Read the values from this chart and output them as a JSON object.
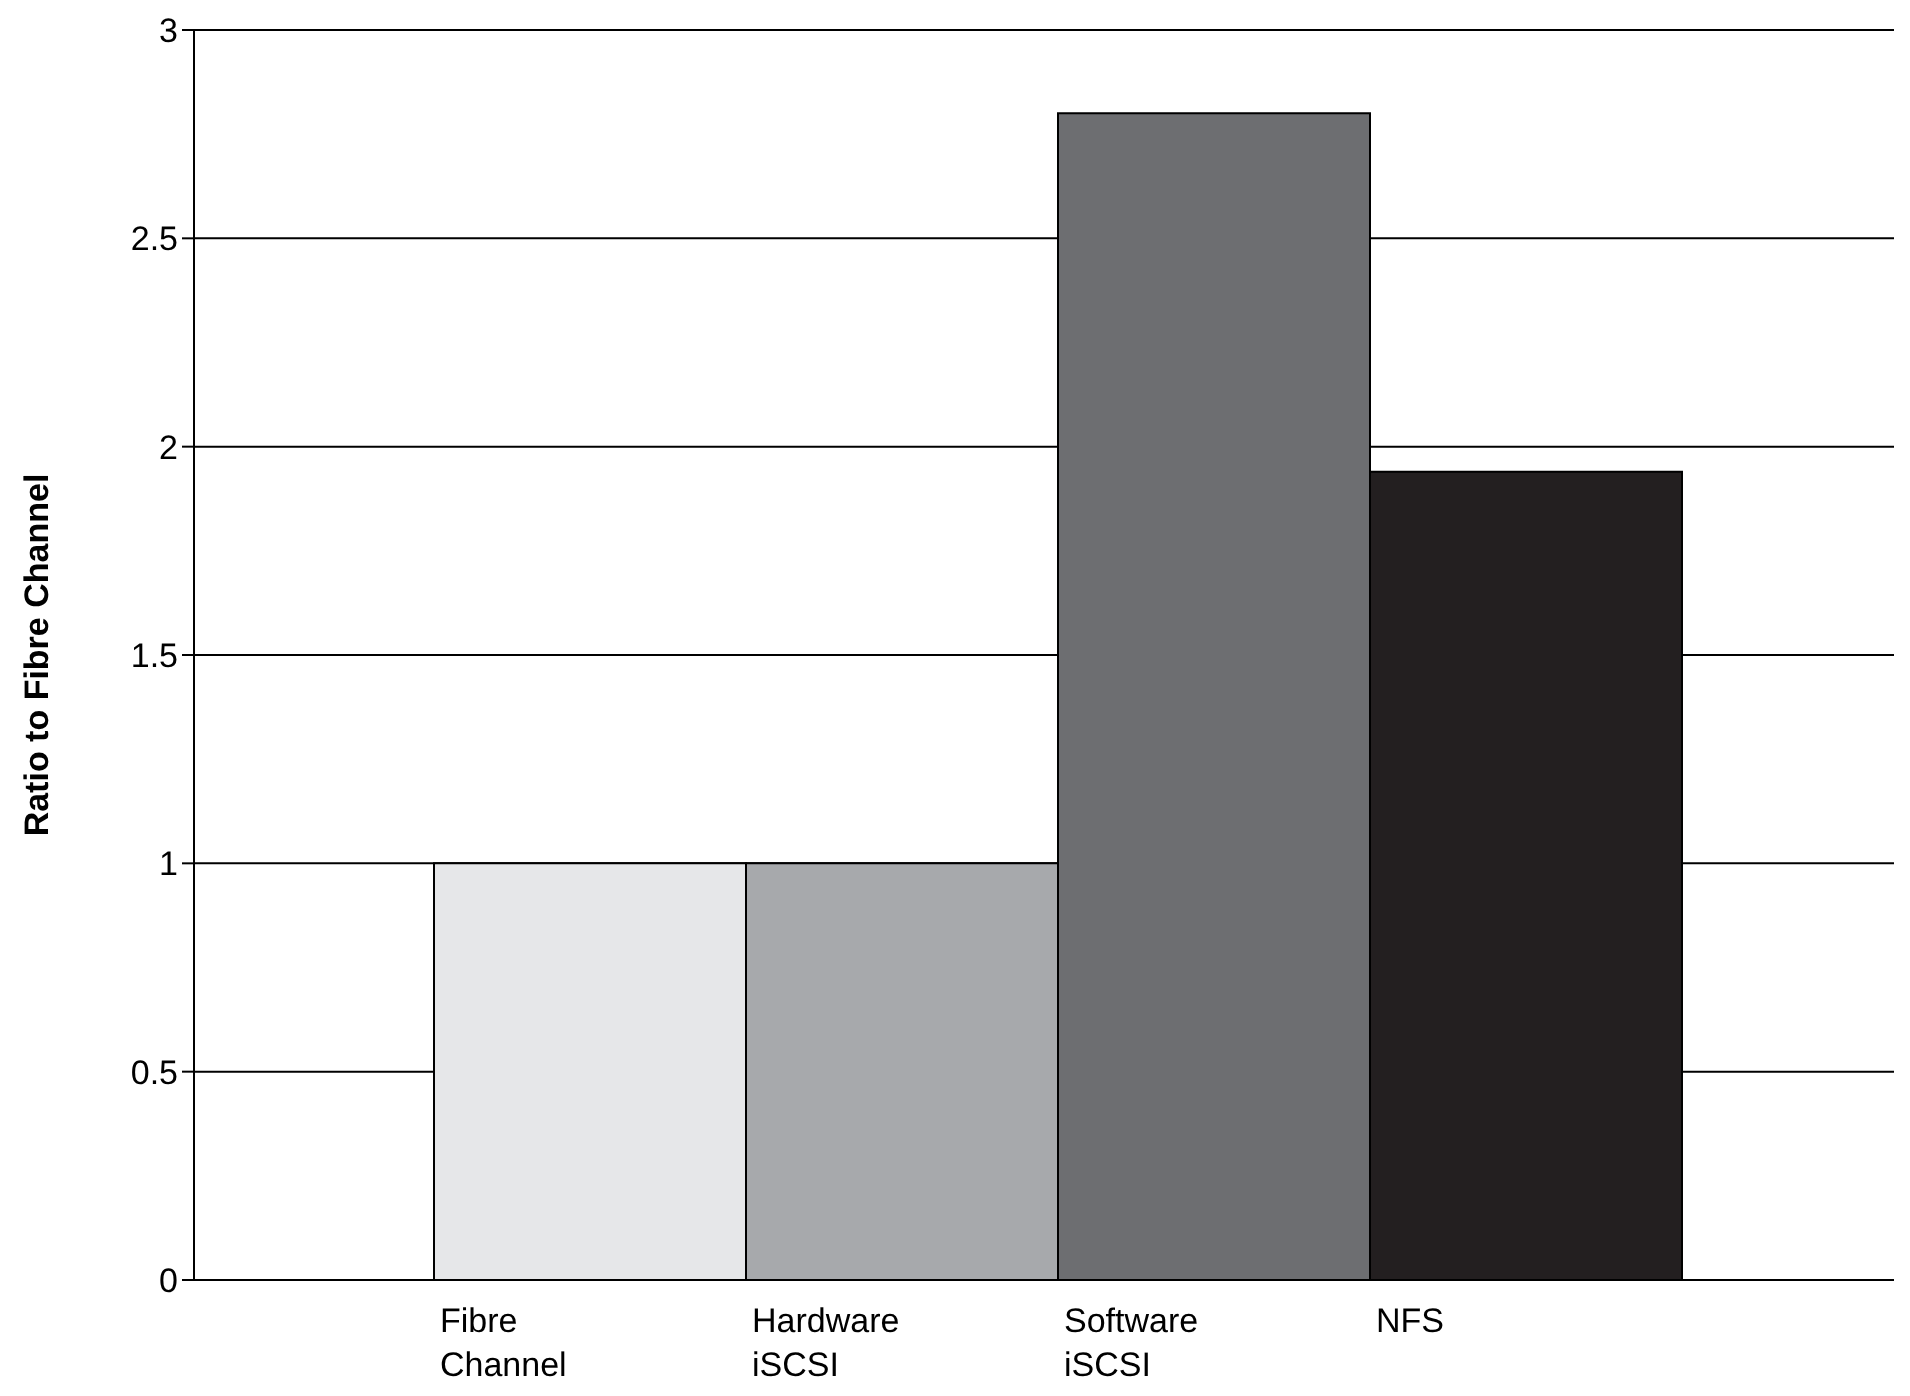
{
  "chart_data": {
    "type": "bar",
    "ylabel": "Ratio to Fibre Channel",
    "categories": [
      "Fibre Channel",
      "Hardware iSCSI",
      "Software iSCSI",
      "NFS"
    ],
    "values": [
      1,
      1,
      2.8,
      1.94
    ],
    "colors": [
      "#e6e7e9",
      "#a7a9ac",
      "#6d6e71",
      "#231f20"
    ],
    "ylim": [
      0,
      3
    ],
    "yticks": [
      0,
      0.5,
      1,
      1.5,
      2,
      2.5,
      3
    ],
    "grid": "y"
  }
}
